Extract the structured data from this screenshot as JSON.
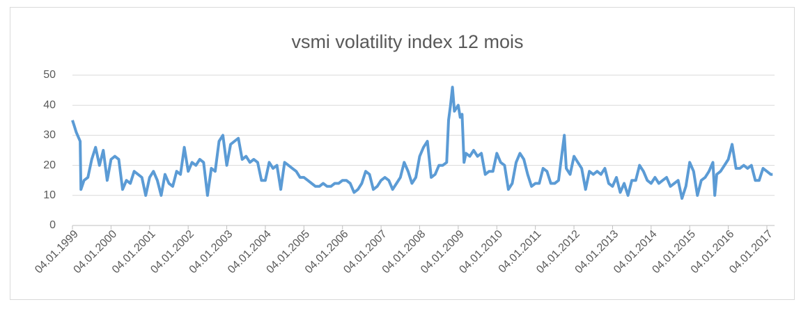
{
  "chart_data": {
    "type": "line",
    "title": "vsmi volatility index 12 mois",
    "color": "#5b9bd5",
    "x": [
      1999.0,
      1999.05,
      1999.1,
      1999.2,
      1999.22,
      1999.3,
      1999.4,
      1999.5,
      1999.6,
      1999.7,
      1999.8,
      1999.9,
      2000.0,
      2000.1,
      2000.2,
      2000.3,
      2000.4,
      2000.5,
      2000.6,
      2000.7,
      2000.8,
      2000.9,
      2001.0,
      2001.1,
      2001.2,
      2001.3,
      2001.4,
      2001.5,
      2001.6,
      2001.7,
      2001.8,
      2001.9,
      2002.0,
      2002.1,
      2002.2,
      2002.3,
      2002.4,
      2002.5,
      2002.6,
      2002.7,
      2002.8,
      2002.9,
      2003.0,
      2003.1,
      2003.2,
      2003.3,
      2003.4,
      2003.5,
      2003.6,
      2003.7,
      2003.8,
      2003.9,
      2004.0,
      2004.1,
      2004.2,
      2004.3,
      2004.4,
      2004.5,
      2004.6,
      2004.7,
      2004.8,
      2004.9,
      2005.0,
      2005.1,
      2005.2,
      2005.3,
      2005.4,
      2005.5,
      2005.6,
      2005.7,
      2005.8,
      2005.9,
      2006.0,
      2006.1,
      2006.2,
      2006.3,
      2006.4,
      2006.5,
      2006.6,
      2006.7,
      2006.8,
      2006.9,
      2007.0,
      2007.1,
      2007.2,
      2007.3,
      2007.4,
      2007.5,
      2007.6,
      2007.7,
      2007.8,
      2007.9,
      2008.0,
      2008.1,
      2008.2,
      2008.3,
      2008.4,
      2008.5,
      2008.6,
      2008.7,
      2008.75,
      2008.8,
      2008.85,
      2008.9,
      2009.0,
      2009.05,
      2009.1,
      2009.15,
      2009.2,
      2009.3,
      2009.4,
      2009.5,
      2009.6,
      2009.7,
      2009.8,
      2009.9,
      2010.0,
      2010.1,
      2010.2,
      2010.3,
      2010.4,
      2010.5,
      2010.6,
      2010.7,
      2010.8,
      2010.9,
      2011.0,
      2011.1,
      2011.2,
      2011.3,
      2011.4,
      2011.5,
      2011.6,
      2011.7,
      2011.75,
      2011.8,
      2011.9,
      2012.0,
      2012.1,
      2012.2,
      2012.3,
      2012.4,
      2012.5,
      2012.6,
      2012.7,
      2012.8,
      2012.9,
      2013.0,
      2013.1,
      2013.2,
      2013.3,
      2013.4,
      2013.5,
      2013.6,
      2013.7,
      2013.8,
      2013.9,
      2014.0,
      2014.1,
      2014.2,
      2014.3,
      2014.4,
      2014.5,
      2014.6,
      2014.7,
      2014.8,
      2014.9,
      2015.0,
      2015.1,
      2015.2,
      2015.3,
      2015.4,
      2015.5,
      2015.6,
      2015.65,
      2015.7,
      2015.8,
      2015.9,
      2016.0,
      2016.1,
      2016.2,
      2016.3,
      2016.4,
      2016.5,
      2016.6,
      2016.7,
      2016.8,
      2016.9,
      2017.0,
      2017.1,
      2017.15
    ],
    "values": [
      35,
      33,
      31,
      28,
      12,
      15,
      16,
      22,
      26,
      20,
      25,
      15,
      22,
      23,
      22,
      12,
      15,
      14,
      18,
      17,
      16,
      10,
      16,
      18,
      15,
      10,
      17,
      14,
      13,
      18,
      17,
      26,
      18,
      21,
      20,
      22,
      21,
      10,
      19,
      18,
      28,
      30,
      20,
      27,
      28,
      29,
      22,
      23,
      21,
      22,
      21,
      15,
      15,
      21,
      19,
      20,
      12,
      21,
      20,
      19,
      18,
      16,
      16,
      15,
      14,
      13,
      13,
      14,
      13,
      13,
      14,
      14,
      15,
      15,
      14,
      11,
      12,
      14,
      18,
      17,
      12,
      13,
      15,
      16,
      15,
      12,
      14,
      16,
      21,
      18,
      14,
      16,
      23,
      26,
      28,
      16,
      17,
      20,
      20,
      21,
      35,
      40,
      46,
      38,
      40,
      36,
      37,
      21,
      24,
      23,
      25,
      23,
      24,
      17,
      18,
      18,
      24,
      21,
      20,
      12,
      14,
      21,
      24,
      22,
      17,
      13,
      14,
      14,
      19,
      18,
      14,
      14,
      15,
      25,
      30,
      19,
      17,
      23,
      21,
      19,
      12,
      18,
      17,
      18,
      17,
      19,
      14,
      13,
      16,
      11,
      14,
      10,
      15,
      15,
      20,
      18,
      15,
      14,
      16,
      14,
      15,
      16,
      13,
      14,
      15,
      9,
      13,
      21,
      18,
      10,
      15,
      16,
      18,
      21,
      10,
      17,
      18,
      20,
      22,
      27,
      19,
      19,
      20,
      19,
      20,
      15,
      15,
      19,
      18,
      17,
      17
    ],
    "xlim": [
      1999.0,
      2017.2
    ],
    "xticks": [
      {
        "value": 1999,
        "label": "04.01.1999"
      },
      {
        "value": 2000,
        "label": "04.01.2000"
      },
      {
        "value": 2001,
        "label": "04.01.2001"
      },
      {
        "value": 2002,
        "label": "04.01.2002"
      },
      {
        "value": 2003,
        "label": "04.01.2003"
      },
      {
        "value": 2004,
        "label": "04.01.2004"
      },
      {
        "value": 2005,
        "label": "04.01.2005"
      },
      {
        "value": 2006,
        "label": "04.01.2006"
      },
      {
        "value": 2007,
        "label": "04.01.2007"
      },
      {
        "value": 2008,
        "label": "04.01.2008"
      },
      {
        "value": 2009,
        "label": "04.01.2009"
      },
      {
        "value": 2010,
        "label": "04.01.2010"
      },
      {
        "value": 2011,
        "label": "04.01.2011"
      },
      {
        "value": 2012,
        "label": "04.01.2012"
      },
      {
        "value": 2013,
        "label": "04.01.2013"
      },
      {
        "value": 2014,
        "label": "04.01.2014"
      },
      {
        "value": 2015,
        "label": "04.01.2015"
      },
      {
        "value": 2016,
        "label": "04.01.2016"
      },
      {
        "value": 2017,
        "label": "04.01.2017"
      }
    ],
    "ylim": [
      0,
      50
    ],
    "yticks": [
      0,
      10,
      20,
      30,
      40,
      50
    ],
    "grid": true
  }
}
